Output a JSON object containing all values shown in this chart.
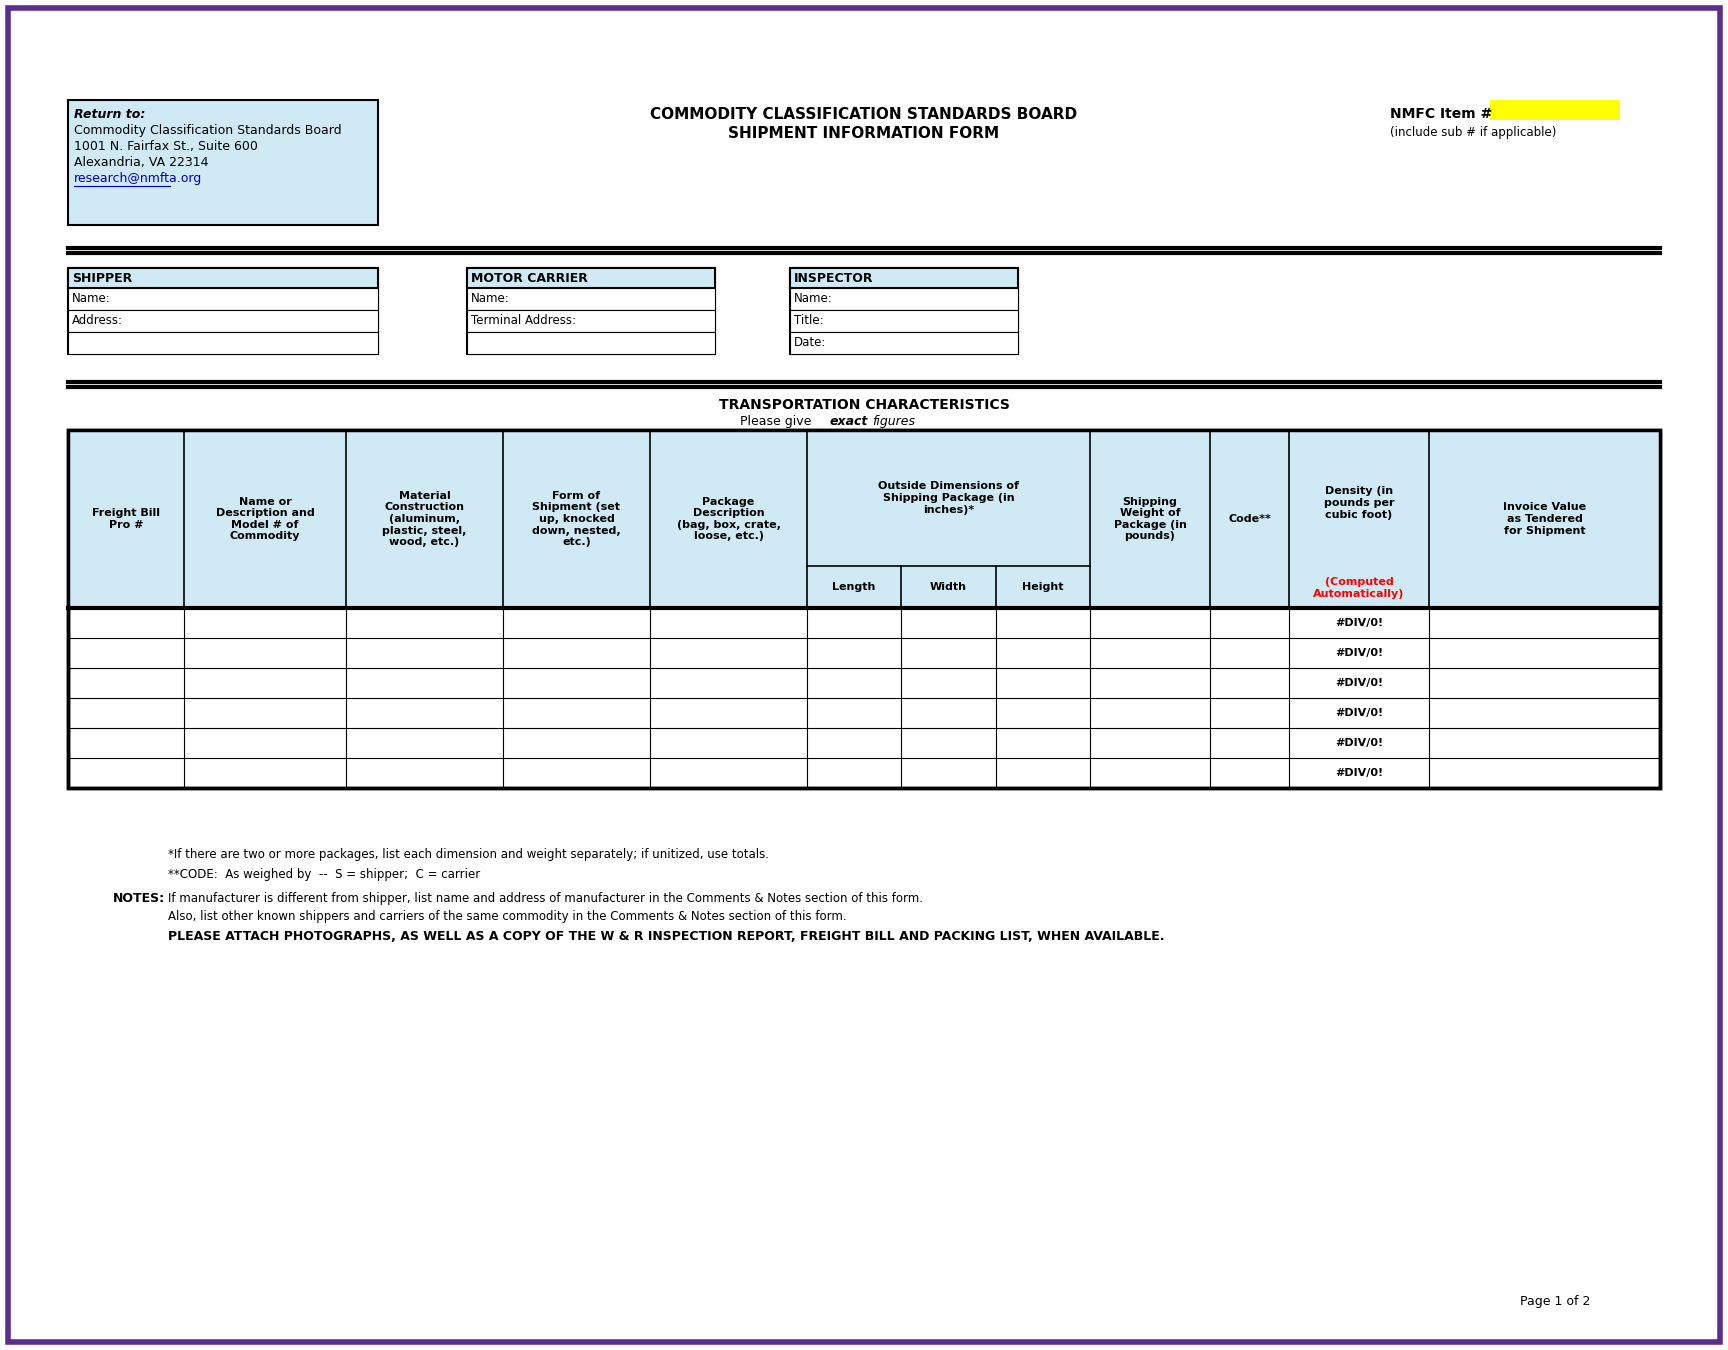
{
  "page_bg": "#ffffff",
  "border_color": "#5b2d8e",
  "title_line1": "COMMODITY CLASSIFICATION STANDARDS BOARD",
  "title_line2": "SHIPMENT INFORMATION FORM",
  "nmfc_label": "NMFC Item #",
  "nmfc_box_color": "#ffff00",
  "nmfc_sub": "(include sub # if applicable)",
  "return_to_label": "Return to:",
  "return_to_lines": [
    "Commodity Classification Standards Board",
    "1001 N. Fairfax St., Suite 600",
    "Alexandria, VA 22314",
    "research@nmfta.org"
  ],
  "light_blue": "#d0eaf5",
  "shipper_label": "SHIPPER",
  "shipper_rows": [
    "Name:",
    "Address:",
    ""
  ],
  "motor_label": "MOTOR CARRIER",
  "motor_rows": [
    "Name:",
    "Terminal Address:",
    ""
  ],
  "inspector_label": "INSPECTOR",
  "inspector_rows": [
    "Name:",
    "Title:",
    "Date:"
  ],
  "section_header": "TRANSPORTATION CHARACTERISTICS",
  "sub_headers": [
    "Length",
    "Width",
    "Height"
  ],
  "data_rows": 6,
  "div_text": "#DIV/0!",
  "note1": "*If there are two or more packages, list each dimension and weight separately; if unitized, use totals.",
  "note2": "**CODE:  As weighed by  --  S = shipper;  C = carrier",
  "notes_label": "NOTES:",
  "note3": "If manufacturer is different from shipper, list name and address of manufacturer in the Comments & Notes section of this form.",
  "note4": "Also, list other known shippers and carriers of the same commodity in the Comments & Notes section of this form.",
  "note5": "PLEASE ATTACH PHOTOGRAPHS, AS WELL AS A COPY OF THE W & R INSPECTION REPORT, FREIGHT BILL AND PACKING LIST, WHEN AVAILABLE.",
  "page_label": "Page 1 of 2"
}
